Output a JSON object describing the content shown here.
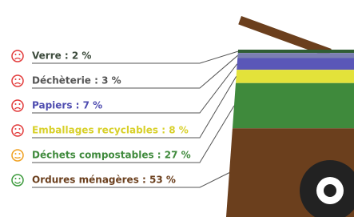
{
  "chart_data": {
    "type": "bin",
    "values": [
      2,
      3,
      7,
      8,
      27,
      53
    ],
    "value_labels": [
      "Verre : 2 %",
      "Déchèterie : 3 %",
      "Papiers : 7 %",
      "Emballages recyclables : 8 %",
      "Déchets compostables : 27 %",
      "Ordures ménagères : 53 %"
    ],
    "colors": [
      "#2f5d34",
      "#7b7fb2",
      "#5a57b8",
      "#e3e23a",
      "#3f8a3c",
      "#6b3f1d"
    ],
    "label_colors": [
      "#3b4a3b",
      "#555555",
      "#4f4db0",
      "#d8d02a",
      "#3f8a3c",
      "#6b3f1d"
    ],
    "face_colors": [
      "#e23b3b",
      "#e23b3b",
      "#e23b3b",
      "#e23b3b",
      "#f0a020",
      "#3c9a3c"
    ]
  }
}
